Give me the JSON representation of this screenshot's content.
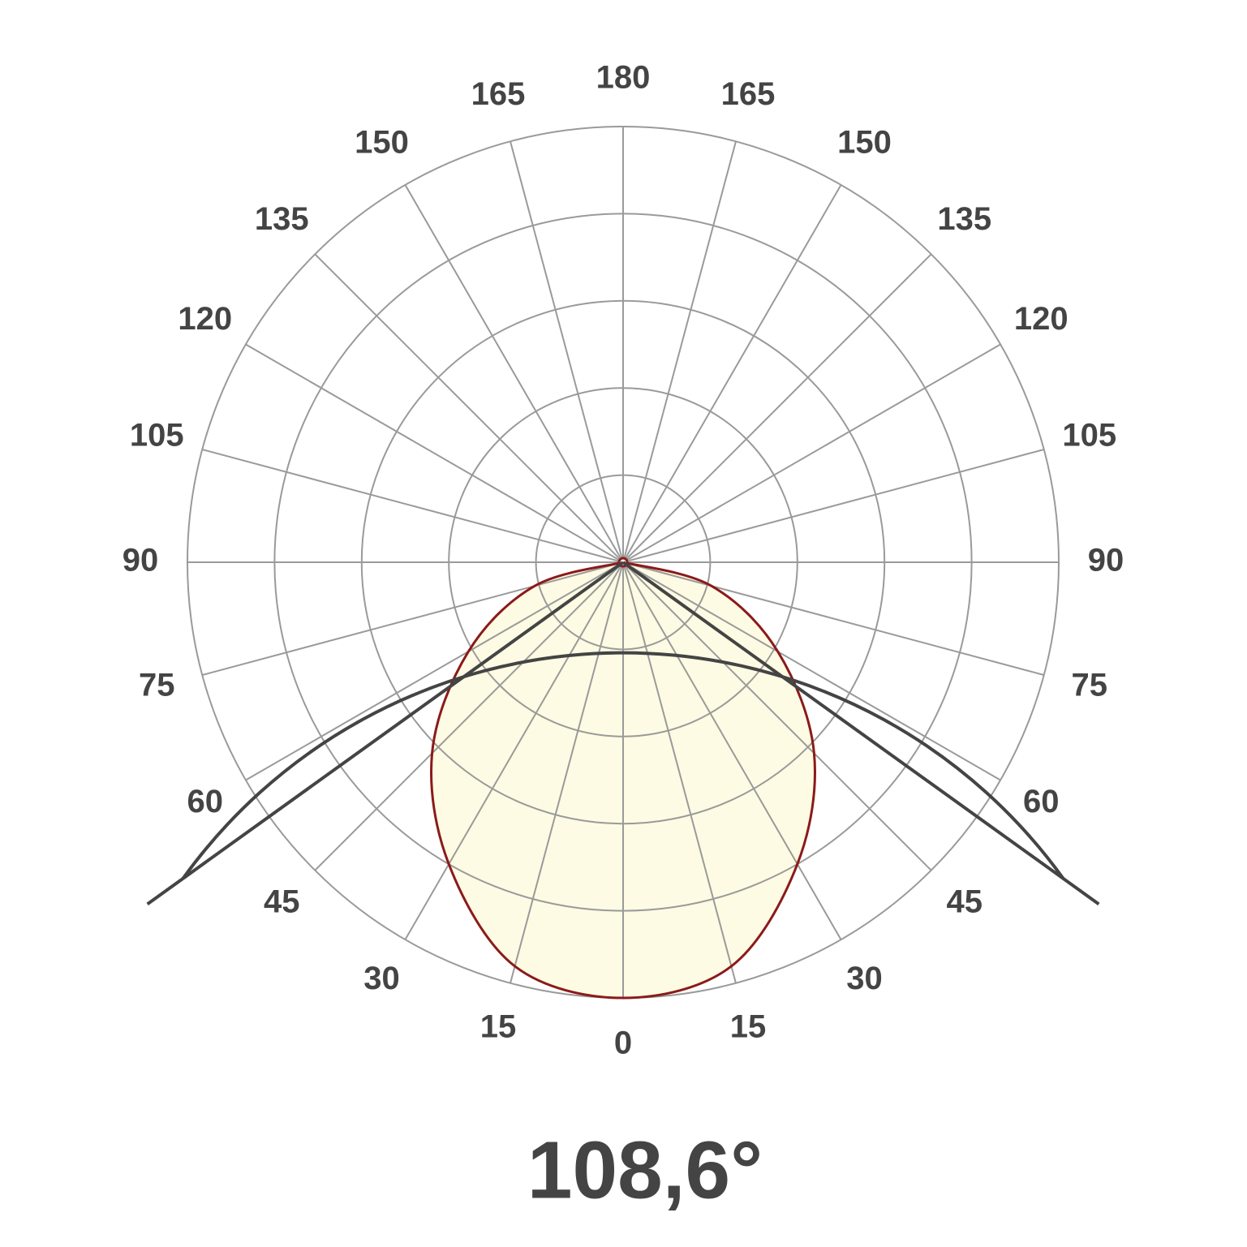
{
  "chart_data": {
    "type": "polar",
    "theta": [
      -90,
      -75,
      -60,
      -45,
      -30,
      -15,
      0,
      15,
      30,
      45,
      60,
      75,
      90
    ],
    "values": [
      0,
      0.21,
      0.41,
      0.62,
      0.8,
      0.96,
      1.0,
      0.96,
      0.8,
      0.62,
      0.41,
      0.21,
      0
    ],
    "color": "#8b1a1a",
    "fill": "#fdfbe3",
    "rlim": [
      0,
      1
    ],
    "rticks": [
      0.2,
      0.4,
      0.6,
      0.8,
      1.0
    ],
    "thetaticks": [
      0,
      15,
      30,
      45,
      60,
      75,
      90,
      105,
      120,
      135,
      150,
      165,
      180
    ],
    "grid": true,
    "beam_angle": {
      "value": 108.6,
      "label": "108,6°"
    }
  }
}
